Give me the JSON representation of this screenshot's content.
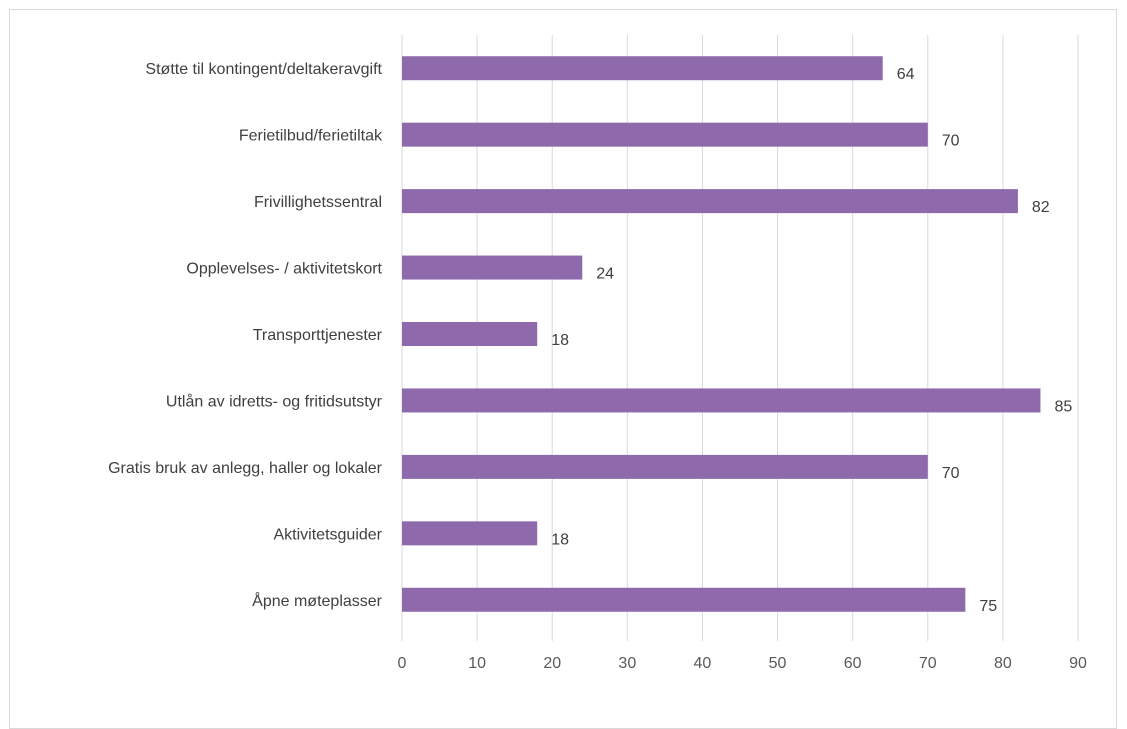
{
  "chart_data": {
    "type": "bar",
    "orientation": "horizontal",
    "categories": [
      "Støtte til kontingent/deltakeravgift",
      "Ferietilbud/ferietiltak",
      "Frivillighetssentral",
      "Opplevelses- / aktivitetskort",
      "Transporttjenester",
      "Utlån av idretts- og fritidsutstyr",
      "Gratis bruk av anlegg, haller og lokaler",
      "Aktivitetsguider",
      "Åpne møteplasser"
    ],
    "values": [
      64,
      70,
      82,
      24,
      18,
      85,
      70,
      18,
      75
    ],
    "xlim": [
      0,
      90
    ],
    "xticks": [
      0,
      10,
      20,
      30,
      40,
      50,
      60,
      70,
      80,
      90
    ],
    "grid": "vertical",
    "data_labels": true,
    "title": "",
    "xlabel": "",
    "ylabel": "",
    "colors": {
      "bar": "#8e6aac",
      "grid": "#d9d9d9",
      "text": "#404040",
      "tick_text": "#595959"
    }
  }
}
